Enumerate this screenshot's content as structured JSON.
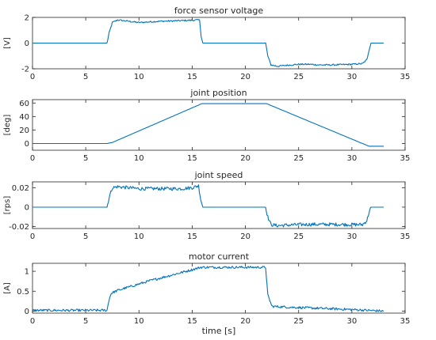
{
  "colors": {
    "series": "#0072BD",
    "axis": "#262626",
    "background": "#ffffff"
  },
  "chart_data": [
    {
      "type": "line",
      "title": "force sensor voltage",
      "xlabel": "",
      "ylabel": "[V]",
      "xlim": [
        0,
        35
      ],
      "ylim": [
        -2,
        2
      ],
      "xticks": [
        0,
        5,
        10,
        15,
        20,
        25,
        30,
        35
      ],
      "yticks": [
        -2,
        0,
        2
      ],
      "ytick_labels": [
        "-2",
        "0",
        "2"
      ],
      "grid": false,
      "noise": 0.06,
      "series": [
        {
          "x": [
            0,
            7.0,
            7.2,
            7.5,
            8,
            9,
            10,
            11,
            12,
            13,
            14,
            15,
            15.7,
            15.85,
            16.0,
            21.9,
            22.1,
            22.4,
            23,
            24,
            25,
            26,
            27,
            28,
            29,
            30,
            31,
            31.4,
            31.6,
            31.8,
            33
          ],
          "y": [
            0,
            0,
            0.8,
            1.6,
            1.8,
            1.7,
            1.6,
            1.65,
            1.7,
            1.72,
            1.75,
            1.78,
            1.8,
            0.5,
            0,
            0,
            -1.0,
            -1.7,
            -1.8,
            -1.72,
            -1.65,
            -1.65,
            -1.7,
            -1.7,
            -1.68,
            -1.65,
            -1.6,
            -1.3,
            -0.6,
            0,
            0
          ]
        }
      ]
    },
    {
      "type": "line",
      "title": "joint position",
      "xlabel": "",
      "ylabel": "[deg]",
      "xlim": [
        0,
        35
      ],
      "ylim": [
        -10,
        65
      ],
      "xticks": [
        0,
        5,
        10,
        15,
        20,
        25,
        30,
        35
      ],
      "yticks": [
        0,
        20,
        40,
        60
      ],
      "ytick_labels": [
        "0",
        "20",
        "40",
        "60"
      ],
      "grid": false,
      "noise": 0,
      "series": [
        {
          "x": [
            0,
            7.0,
            7.5,
            15.9,
            22.0,
            31.6,
            33
          ],
          "y": [
            0,
            0,
            1.5,
            59,
            59,
            -4,
            -4
          ]
        }
      ]
    },
    {
      "type": "line",
      "title": "joint speed",
      "xlabel": "",
      "ylabel": "[rps]",
      "xlim": [
        0,
        35
      ],
      "ylim": [
        -0.022,
        0.026
      ],
      "xticks": [
        0,
        5,
        10,
        15,
        20,
        25,
        30,
        35
      ],
      "yticks": [
        -0.02,
        0,
        0.02
      ],
      "ytick_labels": [
        "-0.02",
        "0",
        "0.02"
      ],
      "grid": false,
      "noise": 0.0018,
      "series": [
        {
          "x": [
            0,
            7.0,
            7.2,
            7.5,
            8,
            9,
            10,
            11,
            12,
            13,
            14,
            15,
            15.6,
            15.8,
            16.0,
            21.9,
            22.1,
            22.4,
            23,
            24,
            25,
            26,
            27,
            28,
            29,
            30,
            31,
            31.4,
            31.6,
            31.8,
            33
          ],
          "y": [
            0,
            0,
            0.01,
            0.02,
            0.021,
            0.02,
            0.019,
            0.019,
            0.019,
            0.019,
            0.019,
            0.02,
            0.022,
            0.008,
            0,
            0,
            -0.01,
            -0.018,
            -0.019,
            -0.0185,
            -0.018,
            -0.0178,
            -0.0178,
            -0.0178,
            -0.0178,
            -0.018,
            -0.018,
            -0.014,
            -0.006,
            0,
            0
          ]
        }
      ]
    },
    {
      "type": "line",
      "title": "motor current",
      "xlabel": "time [s]",
      "ylabel": "[A]",
      "xlim": [
        0,
        35
      ],
      "ylim": [
        -0.05,
        1.2
      ],
      "xticks": [
        0,
        5,
        10,
        15,
        20,
        25,
        30,
        35
      ],
      "yticks": [
        0,
        0.5,
        1
      ],
      "ytick_labels": [
        "0",
        "0.5",
        "1"
      ],
      "grid": false,
      "noise": 0.03,
      "series": [
        {
          "x": [
            0,
            7.0,
            7.2,
            7.4,
            8,
            9,
            10,
            11,
            12,
            13,
            14,
            15,
            15.8,
            16.0,
            17,
            19,
            21.9,
            22.1,
            22.5,
            24,
            26,
            28,
            30,
            31.5,
            33
          ],
          "y": [
            0.02,
            0.02,
            0.3,
            0.45,
            0.52,
            0.6,
            0.68,
            0.76,
            0.83,
            0.9,
            0.97,
            1.04,
            1.1,
            1.1,
            1.1,
            1.1,
            1.1,
            0.4,
            0.12,
            0.1,
            0.08,
            0.06,
            0.04,
            0.02,
            0.0
          ]
        }
      ]
    }
  ]
}
